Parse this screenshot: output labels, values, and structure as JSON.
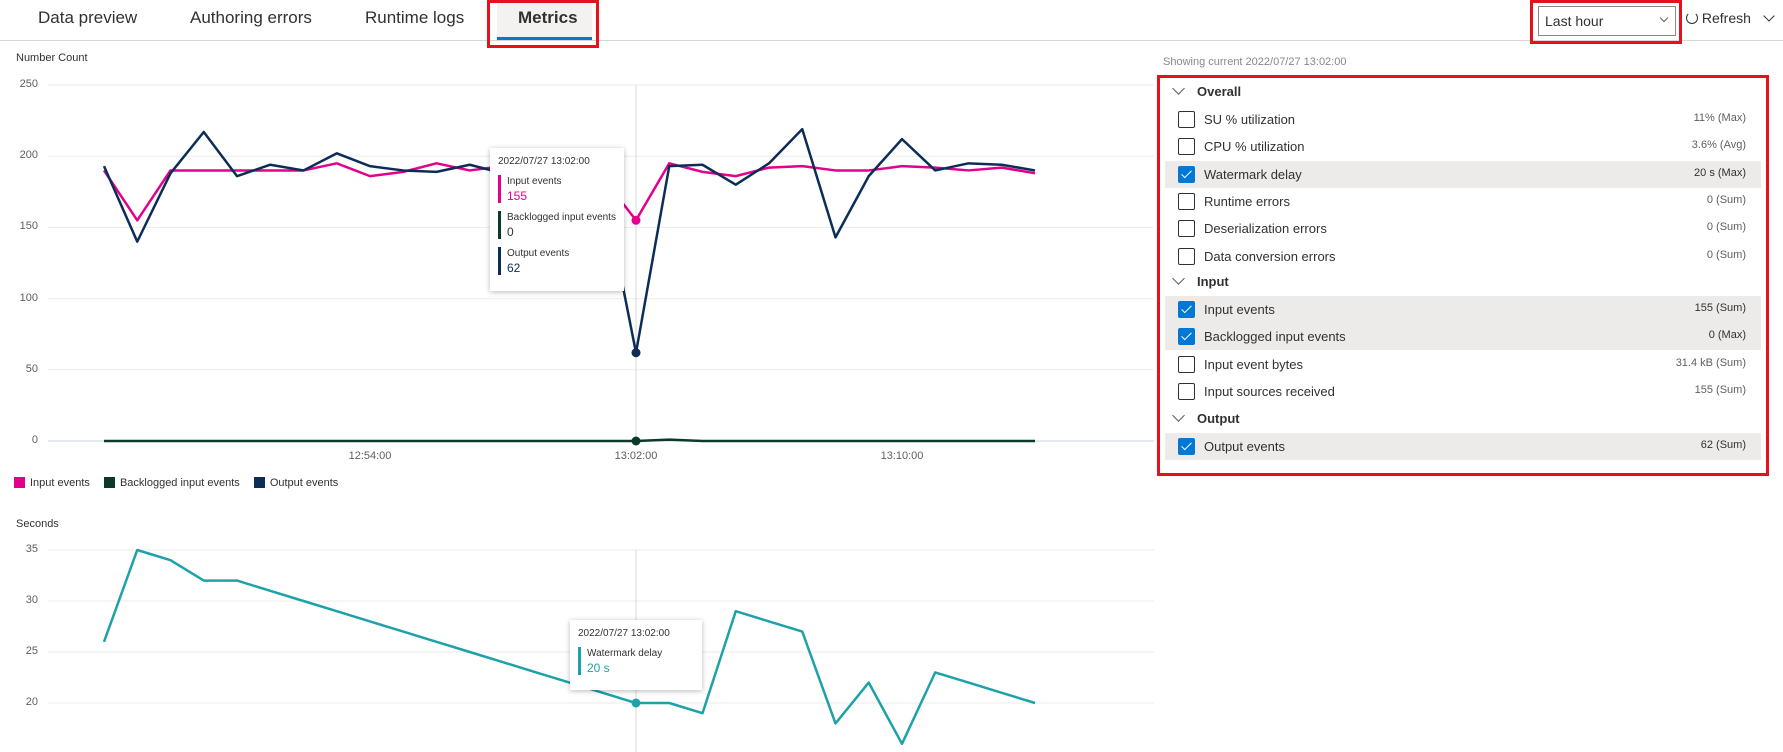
{
  "tabs": [
    {
      "label": "Data preview"
    },
    {
      "label": "Authoring errors"
    },
    {
      "label": "Runtime logs"
    },
    {
      "label": "Metrics",
      "active": true
    }
  ],
  "toolbar": {
    "time_range": "Last hour",
    "refresh_label": "Refresh"
  },
  "accent": "#0078d4",
  "panel": {
    "showing": "Showing current 2022/07/27 13:02:00",
    "sections": [
      {
        "title": "Overall",
        "items": [
          {
            "label": "SU % utilization",
            "value": "11% (Max)",
            "checked": false
          },
          {
            "label": "CPU % utilization",
            "value": "3.6% (Avg)",
            "checked": false
          },
          {
            "label": "Watermark delay",
            "value": "20 s (Max)",
            "checked": true
          },
          {
            "label": "Runtime errors",
            "value": "0 (Sum)",
            "checked": false
          },
          {
            "label": "Deserialization errors",
            "value": "0 (Sum)",
            "checked": false
          },
          {
            "label": "Data conversion errors",
            "value": "0 (Sum)",
            "checked": false
          }
        ]
      },
      {
        "title": "Input",
        "items": [
          {
            "label": "Input events",
            "value": "155 (Sum)",
            "checked": true
          },
          {
            "label": "Backlogged input events",
            "value": "0 (Max)",
            "checked": true
          },
          {
            "label": "Input event bytes",
            "value": "31.4 kB (Sum)",
            "checked": false
          },
          {
            "label": "Input sources received",
            "value": "155 (Sum)",
            "checked": false
          }
        ]
      },
      {
        "title": "Output",
        "items": [
          {
            "label": "Output events",
            "value": "62 (Sum)",
            "checked": true
          }
        ]
      }
    ]
  },
  "chart_data": [
    {
      "type": "line",
      "ylabel": "Number Count",
      "ylim": [
        0,
        250
      ],
      "yticks": [
        "250",
        "200",
        "150",
        "100",
        "50",
        "0"
      ],
      "x": [
        "12:46",
        "12:47",
        "12:48",
        "12:49",
        "12:50",
        "12:51",
        "12:52",
        "12:53",
        "12:54",
        "12:55",
        "12:56",
        "12:57",
        "12:58",
        "12:59",
        "13:00",
        "13:01",
        "13:02",
        "13:03",
        "13:04",
        "13:05",
        "13:06",
        "13:07",
        "13:08",
        "13:09",
        "13:10",
        "13:11",
        "13:12",
        "13:13",
        "13:14"
      ],
      "xticks": [
        "12:54:00",
        "13:02:00",
        "13:10:00"
      ],
      "grid": true,
      "legend": "bottom-left",
      "series": [
        {
          "name": "Input events",
          "color": "#e3008c",
          "values": [
            190,
            155,
            190,
            190,
            190,
            190,
            190,
            195,
            186,
            189,
            195,
            190,
            193,
            190,
            192,
            185,
            155,
            195,
            189,
            186,
            192,
            193,
            190,
            190,
            193,
            192,
            190,
            192,
            188
          ]
        },
        {
          "name": "Backlogged input events",
          "color": "#0b3a2a",
          "values": [
            0,
            0,
            0,
            0,
            0,
            0,
            0,
            0,
            0,
            0,
            0,
            0,
            0,
            0,
            0,
            0,
            0,
            1,
            0,
            0,
            0,
            0,
            0,
            0,
            0,
            0,
            0,
            0,
            0
          ]
        },
        {
          "name": "Output events",
          "color": "#0c2d57",
          "values": [
            193,
            140,
            188,
            217,
            186,
            194,
            190,
            202,
            193,
            190,
            189,
            194,
            188,
            190,
            190,
            180,
            62,
            193,
            194,
            180,
            195,
            219,
            143,
            186,
            212,
            190,
            195,
            194,
            190
          ]
        }
      ],
      "tooltip": {
        "time": "2022/07/27 13:02:00",
        "items": [
          {
            "name": "Input events",
            "value": "155"
          },
          {
            "name": "Backlogged input events",
            "value": "0"
          },
          {
            "name": "Output events",
            "value": "62"
          }
        ]
      }
    },
    {
      "type": "line",
      "ylabel": "Seconds",
      "ylim": [
        15,
        35
      ],
      "yticks": [
        "35",
        "30",
        "25",
        "20"
      ],
      "x": [
        "12:46",
        "12:47",
        "12:48",
        "12:49",
        "12:50",
        "12:51",
        "12:52",
        "12:53",
        "12:54",
        "12:55",
        "12:56",
        "12:57",
        "12:58",
        "12:59",
        "13:00",
        "13:01",
        "13:02",
        "13:03",
        "13:04",
        "13:05",
        "13:06",
        "13:07",
        "13:08",
        "13:09",
        "13:10",
        "13:11",
        "13:12",
        "13:13",
        "13:14"
      ],
      "grid": true,
      "series": [
        {
          "name": "Watermark delay",
          "color": "#1ca2a8",
          "values": [
            26,
            35,
            34,
            32,
            32,
            31,
            30,
            29,
            28,
            27,
            26,
            25,
            24,
            23,
            22,
            21,
            20,
            20,
            19,
            29,
            28,
            27,
            18,
            22,
            16,
            23,
            22,
            21,
            20
          ]
        }
      ],
      "tooltip": {
        "time": "2022/07/27 13:02:00",
        "items": [
          {
            "name": "Watermark delay",
            "value": "20 s"
          }
        ]
      }
    }
  ]
}
